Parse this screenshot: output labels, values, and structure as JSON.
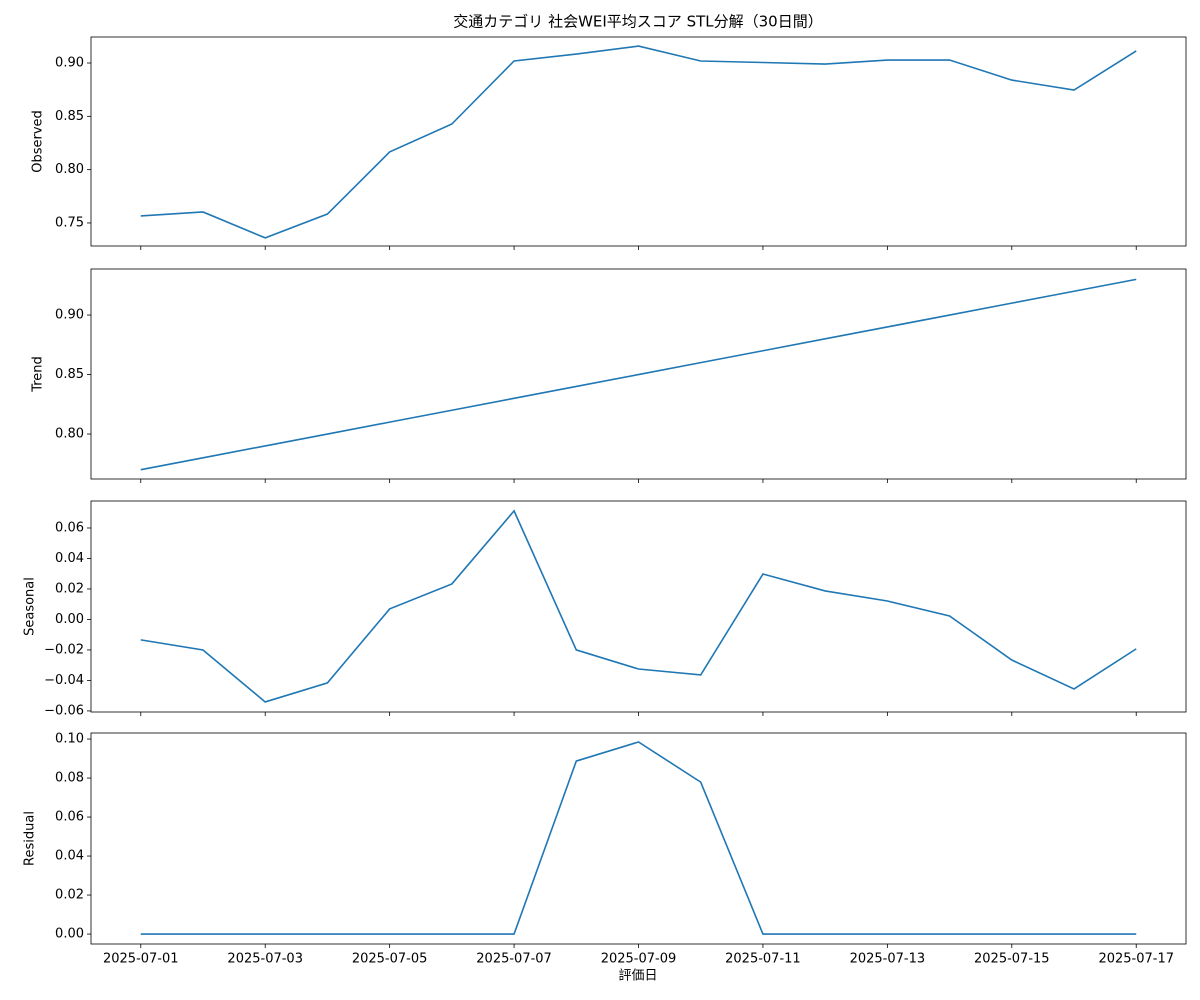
{
  "chart_data": [
    {
      "type": "line",
      "title": "交通カテゴリ 社会WEI平均スコア STL分解（30日間）",
      "ylabel": "Observed",
      "color": "#1f77b4",
      "values": [
        0.7566,
        0.7603,
        0.736,
        0.7584,
        0.8166,
        0.8428,
        0.9019,
        0.9084,
        0.9159,
        0.9019,
        0.9005,
        0.899,
        0.9028,
        0.9028,
        0.884,
        0.8747,
        0.9113
      ],
      "ylim": [
        0.7284,
        0.9244
      ],
      "yticks": [
        {
          "value": 0.75,
          "label": "0.75"
        },
        {
          "value": 0.8,
          "label": "0.80"
        },
        {
          "value": 0.85,
          "label": "0.85"
        },
        {
          "value": 0.9,
          "label": "0.90"
        }
      ]
    },
    {
      "type": "line",
      "ylabel": "Trend",
      "color": "#1f77b4",
      "values": [
        0.77,
        0.78,
        0.79,
        0.8,
        0.81,
        0.82,
        0.83,
        0.84,
        0.85,
        0.86,
        0.87,
        0.88,
        0.89,
        0.9,
        0.91,
        0.92,
        0.93
      ],
      "ylim": [
        0.7622,
        0.9387
      ],
      "yticks": [
        {
          "value": 0.8,
          "label": "0.80"
        },
        {
          "value": 0.85,
          "label": "0.85"
        },
        {
          "value": 0.9,
          "label": "0.90"
        }
      ]
    },
    {
      "type": "line",
      "ylabel": "Seasonal",
      "color": "#1f77b4",
      "values": [
        -0.0134,
        -0.02,
        -0.0541,
        -0.0416,
        0.0069,
        0.0233,
        0.0712,
        -0.02,
        -0.0325,
        -0.0364,
        0.0298,
        0.0187,
        0.0121,
        0.0023,
        -0.0266,
        -0.0456,
        -0.0193
      ],
      "ylim": [
        -0.0607,
        0.0777
      ],
      "yticks": [
        {
          "value": -0.06,
          "label": "−0.06"
        },
        {
          "value": -0.04,
          "label": "−0.04"
        },
        {
          "value": -0.02,
          "label": "−0.02"
        },
        {
          "value": 0,
          "label": "0.00"
        },
        {
          "value": 0.02,
          "label": "0.02"
        },
        {
          "value": 0.04,
          "label": "0.04"
        },
        {
          "value": 0.06,
          "label": "0.06"
        }
      ]
    },
    {
      "type": "line",
      "ylabel": "Residual",
      "xlabel": "評価日",
      "color": "#1f77b4",
      "x": [
        "2025-07-01",
        "2025-07-02",
        "2025-07-03",
        "2025-07-04",
        "2025-07-05",
        "2025-07-06",
        "2025-07-07",
        "2025-07-08",
        "2025-07-09",
        "2025-07-10",
        "2025-07-11",
        "2025-07-12",
        "2025-07-13",
        "2025-07-14",
        "2025-07-15",
        "2025-07-16",
        "2025-07-17"
      ],
      "values": [
        0,
        0,
        0,
        0,
        0,
        0,
        0,
        0.0887,
        0.0985,
        0.0779,
        0,
        0,
        0,
        0,
        0,
        0,
        0
      ],
      "ylim": [
        -0.0051,
        0.1031
      ],
      "xticks": [
        "2025-07-01",
        "2025-07-03",
        "2025-07-05",
        "2025-07-07",
        "2025-07-09",
        "2025-07-11",
        "2025-07-13",
        "2025-07-15",
        "2025-07-17"
      ],
      "yticks": [
        {
          "value": 0,
          "label": "0.00"
        },
        {
          "value": 0.02,
          "label": "0.02"
        },
        {
          "value": 0.04,
          "label": "0.04"
        },
        {
          "value": 0.06,
          "label": "0.06"
        },
        {
          "value": 0.08,
          "label": "0.08"
        },
        {
          "value": 0.1,
          "label": "0.10"
        }
      ]
    }
  ]
}
